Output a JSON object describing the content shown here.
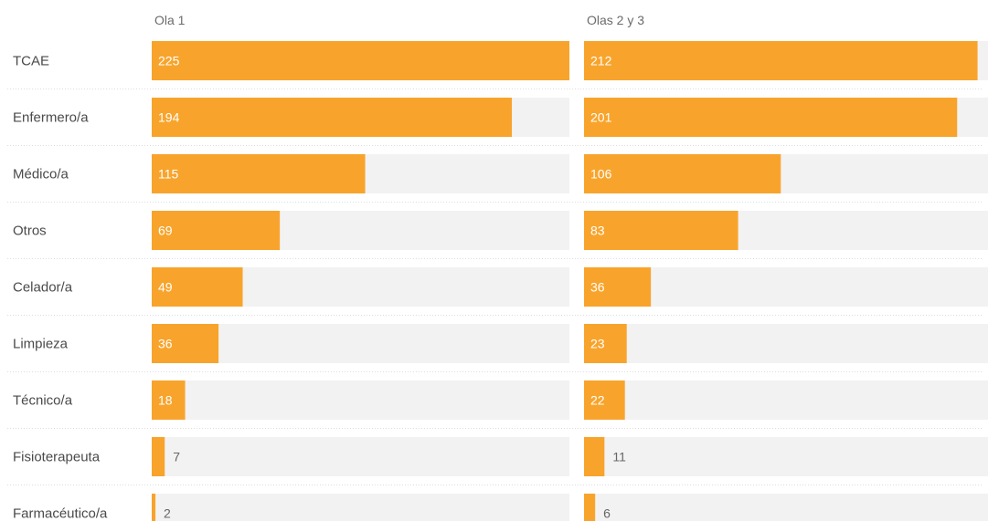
{
  "chart_data": {
    "type": "bar",
    "orientation": "horizontal",
    "layout": "small-multiples",
    "categories": [
      "TCAE",
      "Enfermero/a",
      "Médico/a",
      "Otros",
      "Celador/a",
      "Limpieza",
      "Técnico/a",
      "Fisioterapeuta",
      "Farmacéutico/a"
    ],
    "series": [
      {
        "name": "Ola 1",
        "values": [
          225,
          194,
          115,
          69,
          49,
          36,
          18,
          7,
          2
        ]
      },
      {
        "name": "Olas 2 y 3",
        "values": [
          212,
          201,
          106,
          83,
          36,
          23,
          22,
          11,
          6
        ]
      }
    ],
    "xlim": [
      0,
      225
    ],
    "grid": false,
    "colors": {
      "bar": "#f8a42c",
      "track": "#f2f2f2",
      "label_inside": "#ffffff",
      "label_outside": "#666666",
      "separator": "#dddddd"
    }
  }
}
